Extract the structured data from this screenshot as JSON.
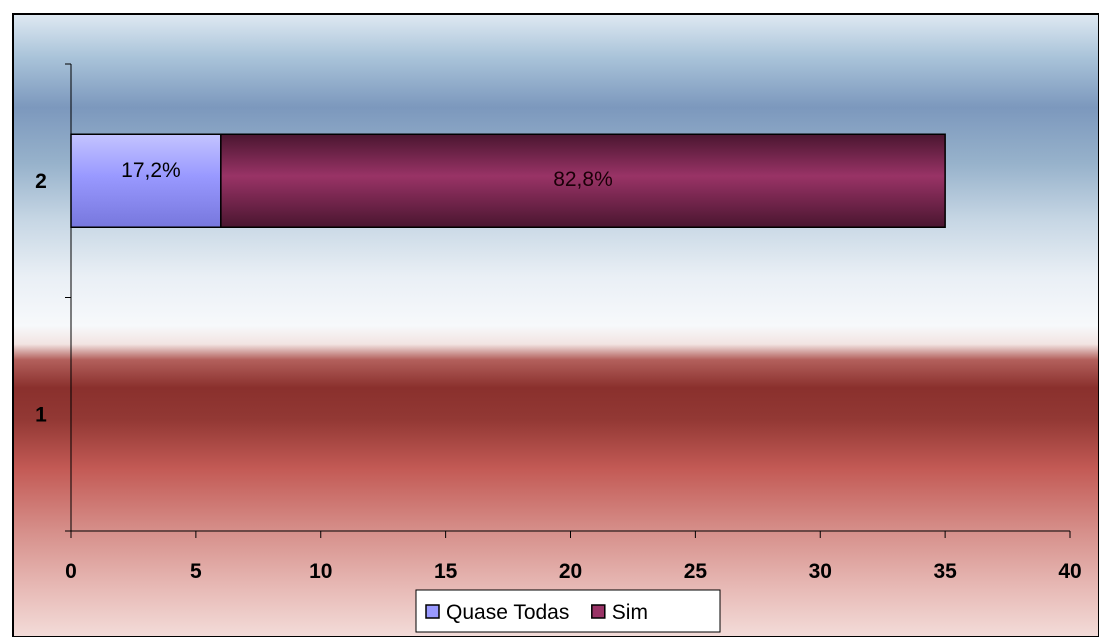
{
  "chart_data": {
    "type": "bar",
    "orientation": "horizontal",
    "stacked": true,
    "categories": [
      "1",
      "2"
    ],
    "series": [
      {
        "name": "Quase Todas",
        "values": [
          0,
          6
        ],
        "data_labels": [
          "",
          "17,2%"
        ],
        "color": "#9999ff"
      },
      {
        "name": "Sim",
        "values": [
          0,
          29
        ],
        "data_labels": [
          "",
          "82,8%"
        ],
        "color": "#993366"
      }
    ],
    "xlim": [
      0,
      40
    ],
    "x_ticks": [
      "0",
      "5",
      "10",
      "15",
      "20",
      "25",
      "30",
      "35",
      "40"
    ],
    "title": "",
    "xlabel": "",
    "ylabel": "",
    "grid": false,
    "legend_position": "bottom"
  }
}
